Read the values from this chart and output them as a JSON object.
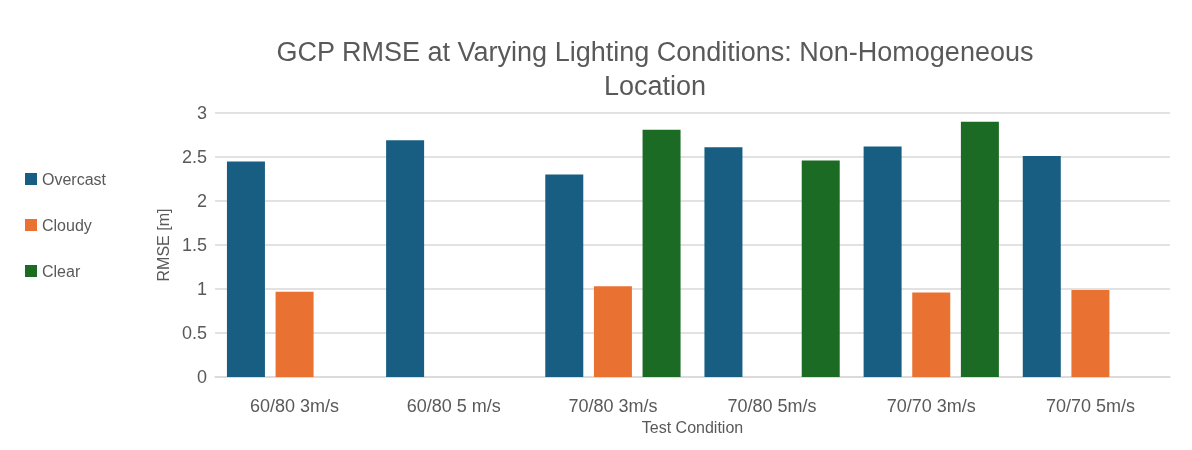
{
  "chart_data": {
    "type": "bar",
    "title": "GCP RMSE at Varying Lighting Conditions: Non-Homogeneous\nLocation",
    "xlabel": "Test Condition",
    "ylabel": "RMSE [m]",
    "categories": [
      "60/80 3m/s",
      "60/80 5 m/s",
      "70/80 3m/s",
      "70/80 5m/s",
      "70/70 3m/s",
      "70/70 5m/s"
    ],
    "series": [
      {
        "name": "Overcast",
        "color": "#175e82",
        "values": [
          2.45,
          2.69,
          2.3,
          2.61,
          2.62,
          2.51
        ]
      },
      {
        "name": "Cloudy",
        "color": "#e97132",
        "values": [
          0.97,
          null,
          1.03,
          null,
          0.96,
          0.99
        ]
      },
      {
        "name": "Clear",
        "color": "#1b6b24",
        "values": [
          null,
          null,
          2.81,
          2.46,
          2.9,
          null
        ]
      }
    ],
    "ylim": [
      0,
      3
    ],
    "yticks": [
      0,
      0.5,
      1,
      1.5,
      2,
      2.5,
      3
    ],
    "grid": "y",
    "legend": "left"
  }
}
